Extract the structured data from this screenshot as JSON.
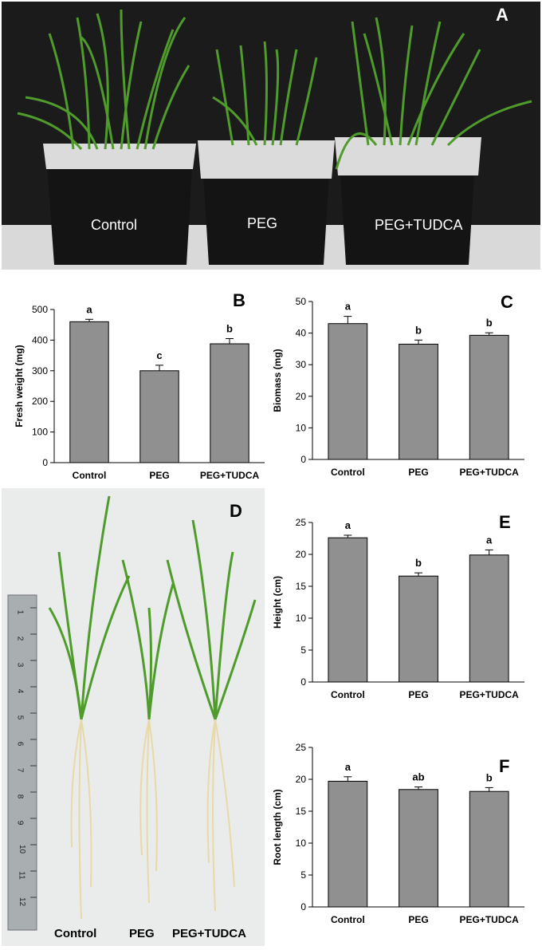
{
  "panels": {
    "a": "A",
    "b": "B",
    "c": "C",
    "d": "D",
    "e": "E",
    "f": "F"
  },
  "photo_a": {
    "labels": [
      "Control",
      "PEG",
      "PEG+TUDCA"
    ]
  },
  "photo_d": {
    "labels": [
      "Control",
      "PEG",
      "PEG+TUDCA"
    ],
    "ruler_numbers": [
      "1",
      "2",
      "3",
      "4",
      "5",
      "6",
      "7",
      "8",
      "9",
      "10",
      "11",
      "12"
    ]
  },
  "colors": {
    "bar": "#909090",
    "bar_stroke": "#000000",
    "photo_a_bg": "#1a1a1a",
    "photo_d_bg": "#e9ecea",
    "leaf": "#4f9b2c"
  },
  "chart_data": [
    {
      "id": "B",
      "type": "bar",
      "categories": [
        "Control",
        "PEG",
        "PEG+TUDCA"
      ],
      "values": [
        460,
        300,
        388
      ],
      "errors": [
        8,
        18,
        17
      ],
      "letters": [
        "a",
        "c",
        "b"
      ],
      "ylabel": "Fresh weight (mg)",
      "ylim": [
        0,
        500
      ],
      "yticks": [
        0,
        100,
        200,
        300,
        400,
        500
      ]
    },
    {
      "id": "C",
      "type": "bar",
      "categories": [
        "Control",
        "PEG",
        "PEG+TUDCA"
      ],
      "values": [
        43,
        36.5,
        39.3
      ],
      "errors": [
        2.3,
        1.3,
        0.8
      ],
      "letters": [
        "a",
        "b",
        "b"
      ],
      "ylabel": "Biomass (mg)",
      "ylim": [
        0,
        50
      ],
      "yticks": [
        0,
        10,
        20,
        30,
        40,
        50
      ]
    },
    {
      "id": "E",
      "type": "bar",
      "categories": [
        "Control",
        "PEG",
        "PEG+TUDCA"
      ],
      "values": [
        22.6,
        16.6,
        19.9
      ],
      "errors": [
        0.4,
        0.5,
        0.8
      ],
      "letters": [
        "a",
        "b",
        "a"
      ],
      "ylabel": "Height (cm)",
      "ylim": [
        0,
        25
      ],
      "yticks": [
        0,
        5,
        10,
        15,
        20,
        25
      ]
    },
    {
      "id": "F",
      "type": "bar",
      "categories": [
        "Control",
        "PEG",
        "PEG+TUDCA"
      ],
      "values": [
        19.7,
        18.4,
        18.1
      ],
      "errors": [
        0.7,
        0.4,
        0.6
      ],
      "letters": [
        "a",
        "ab",
        "b"
      ],
      "ylabel": "Root length (cm)",
      "ylim": [
        0,
        25
      ],
      "yticks": [
        0,
        5,
        10,
        15,
        20,
        25
      ]
    }
  ]
}
